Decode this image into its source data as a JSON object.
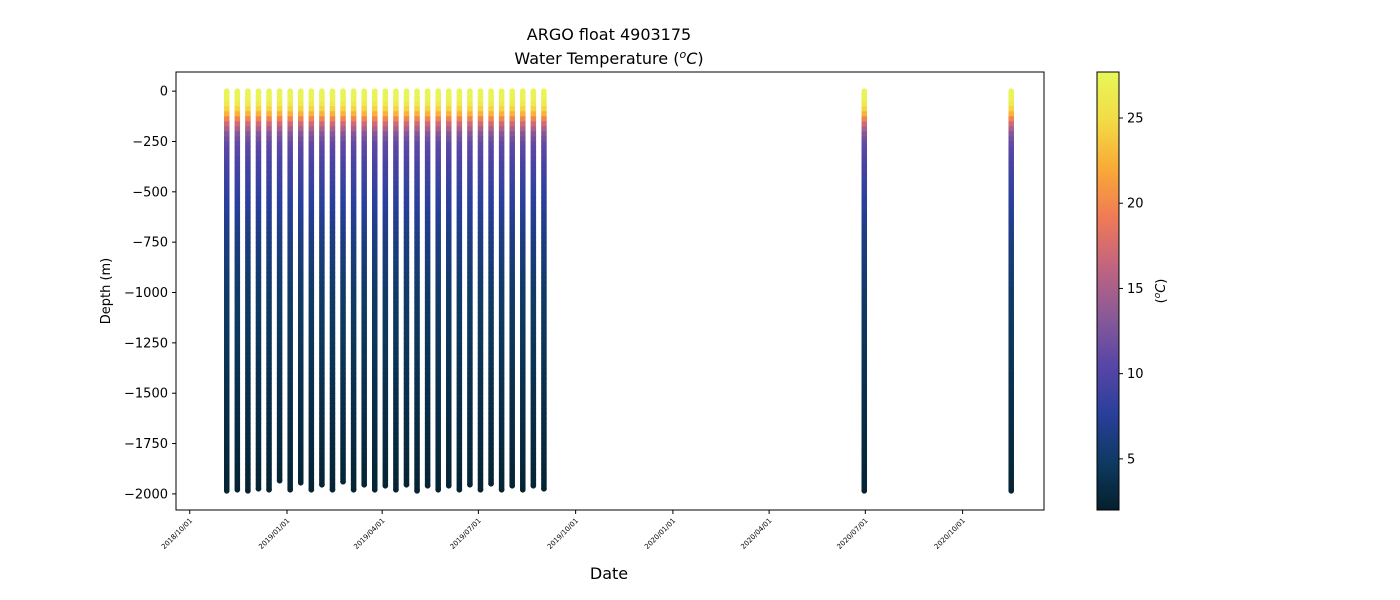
{
  "chart_data": {
    "type": "scatter",
    "title": "ARGO float 4903175",
    "subtitle_prefix": "Water Temperature (",
    "subtitle_unit_base": "C",
    "subtitle_unit_sup": "o",
    "subtitle_suffix": ")",
    "xlabel": "Date",
    "ylabel": "Depth (m)",
    "x_type": "date",
    "xlim": [
      "2018-09-18",
      "2020-12-17"
    ],
    "ylim": [
      -2080,
      95
    ],
    "x_ticks": [
      "2018/10/01",
      "2019/01/01",
      "2019/04/01",
      "2019/07/01",
      "2019/10/01",
      "2020/01/01",
      "2020/04/01",
      "2020/07/01",
      "2020/10/01"
    ],
    "y_ticks": [
      0,
      -250,
      -500,
      -750,
      -1000,
      -1250,
      -1500,
      -1750,
      -2000
    ],
    "y_tick_labels": [
      "0",
      "−250",
      "−500",
      "−750",
      "−1000",
      "−1250",
      "−1500",
      "−1750",
      "−2000"
    ],
    "grid": false,
    "colorbar": {
      "label_base": "C",
      "label_sup": "o",
      "range": [
        2.0,
        27.7
      ],
      "ticks": [
        5,
        10,
        15,
        20,
        25
      ],
      "colormap": [
        "#04202c",
        "#0e3a63",
        "#2a3f9c",
        "#5a46a6",
        "#8a5a97",
        "#c26480",
        "#f07a56",
        "#f9a937",
        "#f3db45",
        "#e8f758"
      ]
    },
    "temperature_profile": [
      {
        "depth": 0,
        "temp": 27.5
      },
      {
        "depth": -40,
        "temp": 27.0
      },
      {
        "depth": -70,
        "temp": 25.0
      },
      {
        "depth": -100,
        "temp": 22.5
      },
      {
        "depth": -150,
        "temp": 17.0
      },
      {
        "depth": -200,
        "temp": 13.0
      },
      {
        "depth": -250,
        "temp": 11.0
      },
      {
        "depth": -350,
        "temp": 9.5
      },
      {
        "depth": -500,
        "temp": 8.0
      },
      {
        "depth": -700,
        "temp": 6.5
      },
      {
        "depth": -1000,
        "temp": 5.0
      },
      {
        "depth": -1500,
        "temp": 3.6
      },
      {
        "depth": -2000,
        "temp": 2.3
      }
    ],
    "profiles": [
      {
        "date": "2018-11-05",
        "max_depth": -1985
      },
      {
        "date": "2018-11-15",
        "max_depth": -1980
      },
      {
        "date": "2018-11-25",
        "max_depth": -1985
      },
      {
        "date": "2018-12-05",
        "max_depth": -1975
      },
      {
        "date": "2018-12-15",
        "max_depth": -1980
      },
      {
        "date": "2018-12-25",
        "max_depth": -1935
      },
      {
        "date": "2019-01-04",
        "max_depth": -1980
      },
      {
        "date": "2019-01-14",
        "max_depth": -1945
      },
      {
        "date": "2019-01-24",
        "max_depth": -1980
      },
      {
        "date": "2019-02-03",
        "max_depth": -1955
      },
      {
        "date": "2019-02-13",
        "max_depth": -1980
      },
      {
        "date": "2019-02-23",
        "max_depth": -1940
      },
      {
        "date": "2019-03-05",
        "max_depth": -1980
      },
      {
        "date": "2019-03-15",
        "max_depth": -1955
      },
      {
        "date": "2019-03-25",
        "max_depth": -1980
      },
      {
        "date": "2019-04-04",
        "max_depth": -1960
      },
      {
        "date": "2019-04-14",
        "max_depth": -1980
      },
      {
        "date": "2019-04-24",
        "max_depth": -1955
      },
      {
        "date": "2019-05-04",
        "max_depth": -1985
      },
      {
        "date": "2019-05-14",
        "max_depth": -1960
      },
      {
        "date": "2019-05-24",
        "max_depth": -1980
      },
      {
        "date": "2019-06-03",
        "max_depth": -1960
      },
      {
        "date": "2019-06-13",
        "max_depth": -1980
      },
      {
        "date": "2019-06-23",
        "max_depth": -1955
      },
      {
        "date": "2019-07-03",
        "max_depth": -1980
      },
      {
        "date": "2019-07-13",
        "max_depth": -1950
      },
      {
        "date": "2019-07-23",
        "max_depth": -1980
      },
      {
        "date": "2019-08-02",
        "max_depth": -1960
      },
      {
        "date": "2019-08-12",
        "max_depth": -1980
      },
      {
        "date": "2019-08-22",
        "max_depth": -1960
      },
      {
        "date": "2019-09-01",
        "max_depth": -1975
      },
      {
        "date": "2020-06-30",
        "max_depth": -1985
      },
      {
        "date": "2020-11-16",
        "max_depth": -1985
      }
    ]
  }
}
